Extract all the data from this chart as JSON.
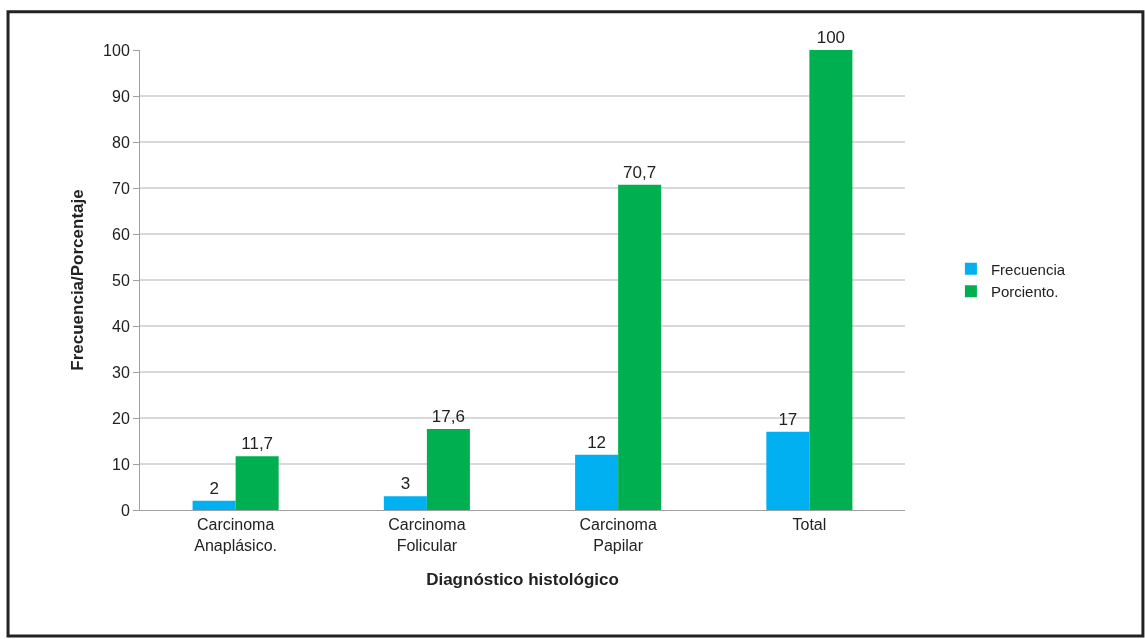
{
  "chart_data": {
    "type": "bar",
    "categories": [
      "Carcinoma\nAnaplásico.",
      "Carcinoma\nFolicular",
      "Carcinoma\nPapilar",
      "Total"
    ],
    "series": [
      {
        "name": "Frecuencia",
        "color": "#00b0f0",
        "values": [
          2,
          3,
          12,
          17
        ],
        "value_labels": [
          "2",
          "3",
          "12",
          "17"
        ]
      },
      {
        "name": "Porciento.",
        "color": "#00b050",
        "values": [
          11.7,
          17.6,
          70.7,
          100
        ],
        "value_labels": [
          "11,7",
          "17,6",
          "70,7",
          "100"
        ]
      }
    ],
    "xlabel": "Diagnóstico histológico",
    "ylabel": "Frecuencia/Porcentaje",
    "ylim": [
      0,
      100
    ],
    "yticks": [
      0,
      10,
      20,
      30,
      40,
      50,
      60,
      70,
      80,
      90,
      100
    ],
    "grid": "y",
    "legend": "right"
  }
}
